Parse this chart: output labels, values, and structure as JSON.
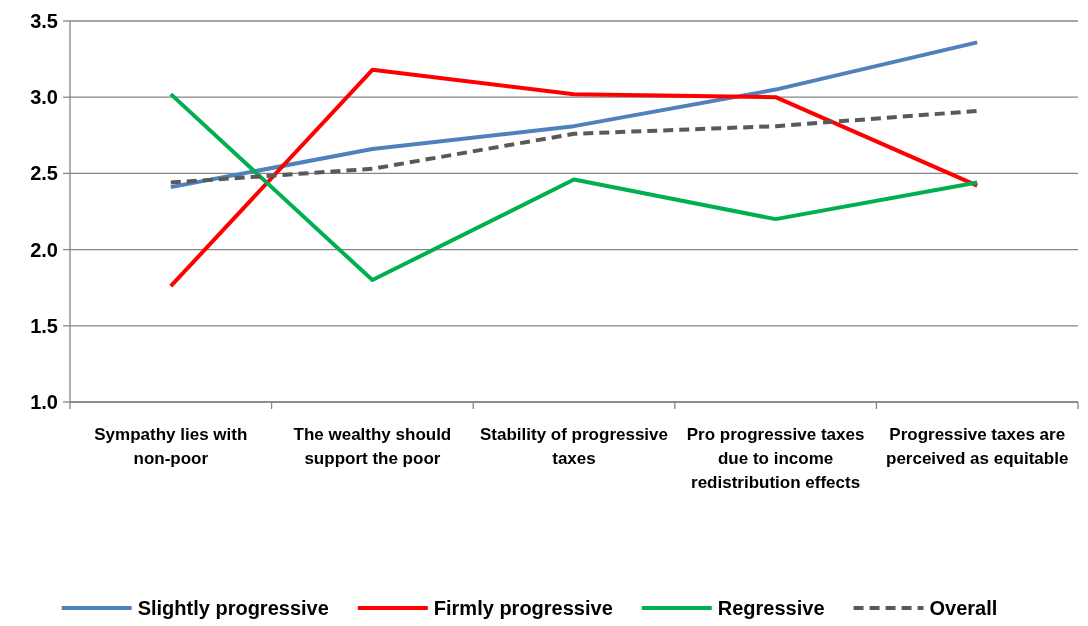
{
  "chart_data": {
    "type": "line",
    "categories": [
      "Sympathy lies with non-poor",
      "The wealthy should support the poor",
      "Stability of progressive taxes",
      "Pro progressive taxes due to income redistribution effects",
      "Progressive taxes are perceived as equitable"
    ],
    "series": [
      {
        "name": "Slightly progressive",
        "color": "#4f81bd",
        "values": [
          2.41,
          2.66,
          2.81,
          3.05,
          3.36
        ]
      },
      {
        "name": "Firmly progressive",
        "color": "#ff0000",
        "values": [
          1.76,
          3.18,
          3.02,
          3.0,
          2.42
        ]
      },
      {
        "name": "Regressive",
        "color": "#00b050",
        "values": [
          3.02,
          1.8,
          2.46,
          2.2,
          2.44
        ]
      },
      {
        "name": "Overall",
        "color": "#595959",
        "values": [
          2.44,
          2.53,
          2.76,
          2.81,
          2.91
        ],
        "line_style": "dashed"
      }
    ],
    "ylim": [
      1.0,
      3.5
    ],
    "yticks": [
      {
        "value": 1,
        "label": "1.0"
      },
      {
        "value": 1.5,
        "label": "1.5"
      },
      {
        "value": 2,
        "label": "2.0"
      },
      {
        "value": 2.5,
        "label": "2.5"
      },
      {
        "value": 3,
        "label": "3.0"
      },
      {
        "value": 3.5,
        "label": "3.5"
      }
    ],
    "grid": "y",
    "legend": "bottom"
  }
}
